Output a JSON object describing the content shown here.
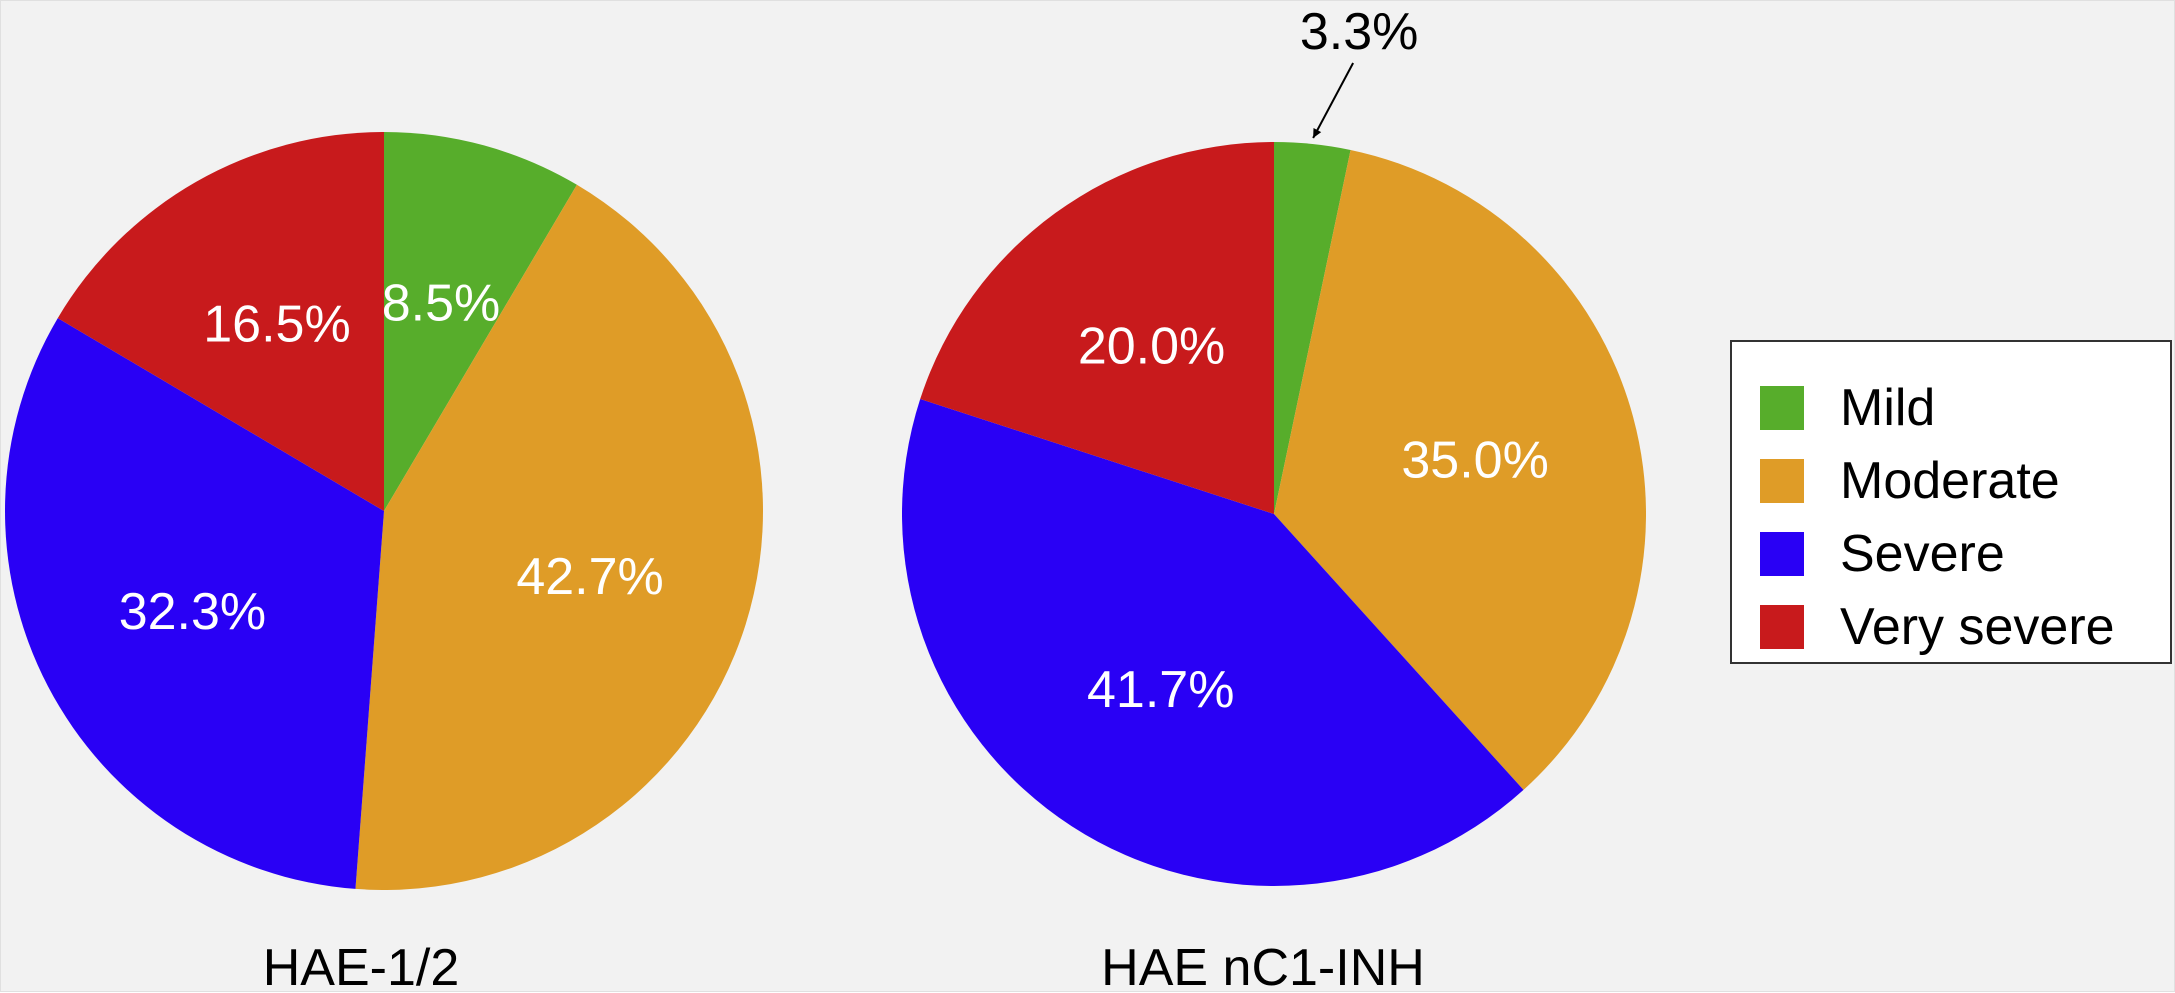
{
  "legend": {
    "items": [
      {
        "label": "Mild",
        "color": "#57ad2b"
      },
      {
        "label": "Moderate",
        "color": "#df9c27"
      },
      {
        "label": "Severe",
        "color": "#2900f5"
      },
      {
        "label": "Very severe",
        "color": "#c81a1c"
      }
    ]
  },
  "chart_data": [
    {
      "type": "pie",
      "title": "HAE-1/2",
      "labels": [
        "Mild",
        "Moderate",
        "Severe",
        "Very severe"
      ],
      "values": [
        8.5,
        42.7,
        32.3,
        16.5
      ],
      "value_labels": [
        "8.5%",
        "42.7%",
        "32.3%",
        "16.5%"
      ],
      "colors": [
        "#57ad2b",
        "#df9c27",
        "#2900f5",
        "#c81a1c"
      ],
      "start_angle": "12 o'clock",
      "direction": "clockwise",
      "legend": "right"
    },
    {
      "type": "pie",
      "title": "HAE nC1-INH",
      "labels": [
        "Mild",
        "Moderate",
        "Severe",
        "Very severe"
      ],
      "values": [
        3.3,
        35.0,
        41.7,
        20.0
      ],
      "value_labels": [
        "3.3%",
        "35.0%",
        "41.7%",
        "20.0%"
      ],
      "colors": [
        "#57ad2b",
        "#df9c27",
        "#2900f5",
        "#c81a1c"
      ],
      "start_angle": "12 o'clock",
      "direction": "clockwise",
      "outside_label_index": 0,
      "legend": "right"
    }
  ]
}
